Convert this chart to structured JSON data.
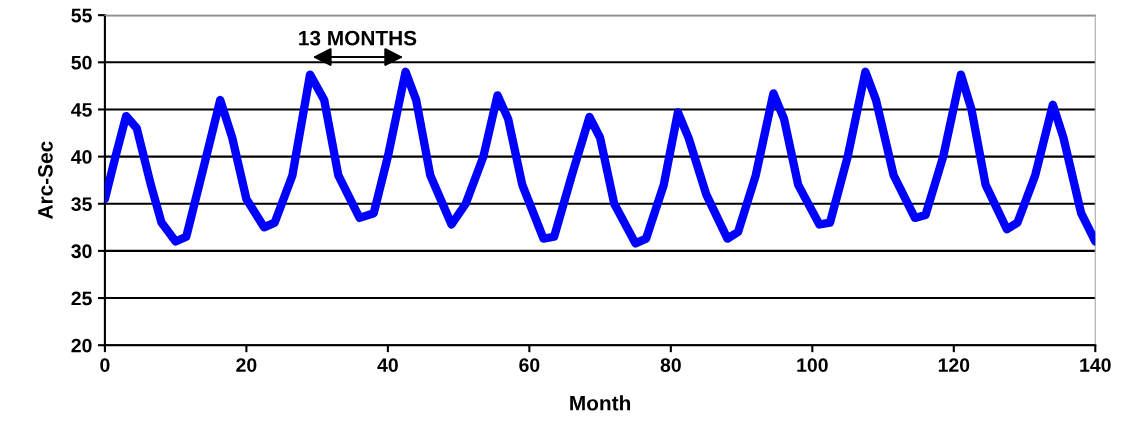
{
  "chart_data": {
    "type": "line",
    "xlabel": "Month",
    "ylabel": "Arc-Sec",
    "x": [
      0,
      1.5,
      3,
      4.5,
      6.5,
      8,
      10,
      11.5,
      14,
      16.3,
      18,
      20,
      22.5,
      24,
      26.5,
      29,
      31,
      33,
      36,
      38,
      40,
      42.5,
      44,
      46,
      49,
      51,
      53.5,
      55.5,
      57,
      59,
      62,
      63.5,
      66,
      68.5,
      70,
      72,
      75,
      76.5,
      79,
      81,
      82.5,
      85,
      88,
      89.5,
      92,
      94.5,
      96,
      98,
      101,
      102.5,
      105,
      107.5,
      109,
      111.5,
      114.5,
      116,
      118.5,
      121,
      122.5,
      124.5,
      127.5,
      129,
      131.5,
      134,
      135.5,
      138,
      140
    ],
    "series": [
      {
        "color": "#0000ff",
        "values": [
          35.5,
          40,
          44.3,
          43,
          37,
          33,
          31,
          31.5,
          39,
          46,
          42,
          35.5,
          32.5,
          33,
          38,
          48.7,
          46,
          38,
          33.5,
          34,
          40,
          49,
          46,
          38,
          32.8,
          35,
          40,
          46.5,
          44,
          37,
          31.3,
          31.5,
          38,
          44.2,
          42,
          35,
          30.8,
          31.3,
          37,
          44.7,
          42,
          36,
          31.3,
          32,
          38,
          46.7,
          44,
          37,
          32.8,
          33,
          40,
          49,
          46,
          38,
          33.5,
          33.8,
          40,
          48.7,
          45,
          37,
          32.3,
          33,
          38,
          45.5,
          42,
          34,
          31
        ]
      }
    ],
    "xlim": [
      0,
      140
    ],
    "xticks": [
      0,
      20,
      40,
      60,
      80,
      100,
      120,
      140
    ],
    "ylim": [
      20,
      55
    ],
    "yticks": [
      20,
      25,
      30,
      35,
      40,
      45,
      50,
      55
    ],
    "grid": "y",
    "legend": false,
    "marker": "none",
    "line_style": "solid",
    "annotations": [
      "13 MONTHS"
    ]
  }
}
